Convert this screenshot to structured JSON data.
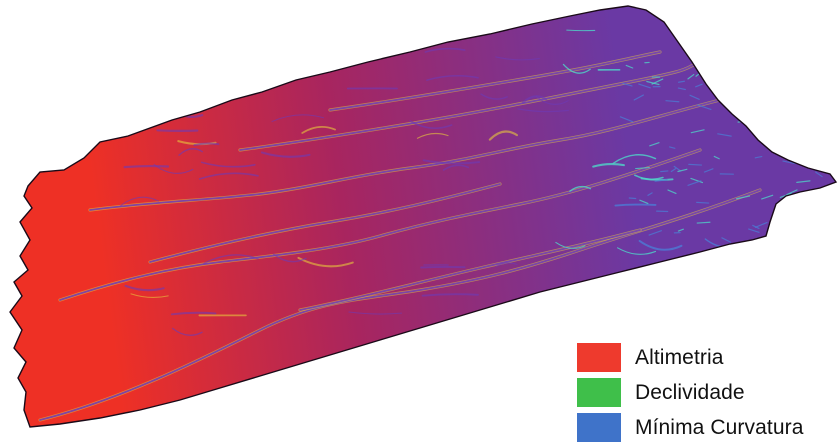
{
  "map": {
    "colors": {
      "high": "#ee3025",
      "mid": "#a8255f",
      "low": "#6a39a4",
      "stream_yellow": "#e8c63c",
      "stream_purple": "#6c3ab8",
      "stream_blue": "#4c7bd4",
      "stream_cyan": "#4fd6c8",
      "outline": "#1a0a18"
    }
  },
  "legend": {
    "items": [
      {
        "label": "Altimetria",
        "color": "#ee3a2d"
      },
      {
        "label": "Declividade",
        "color": "#3fbf4a"
      },
      {
        "label": "Mínima Curvatura",
        "color": "#3f73c9"
      }
    ]
  }
}
